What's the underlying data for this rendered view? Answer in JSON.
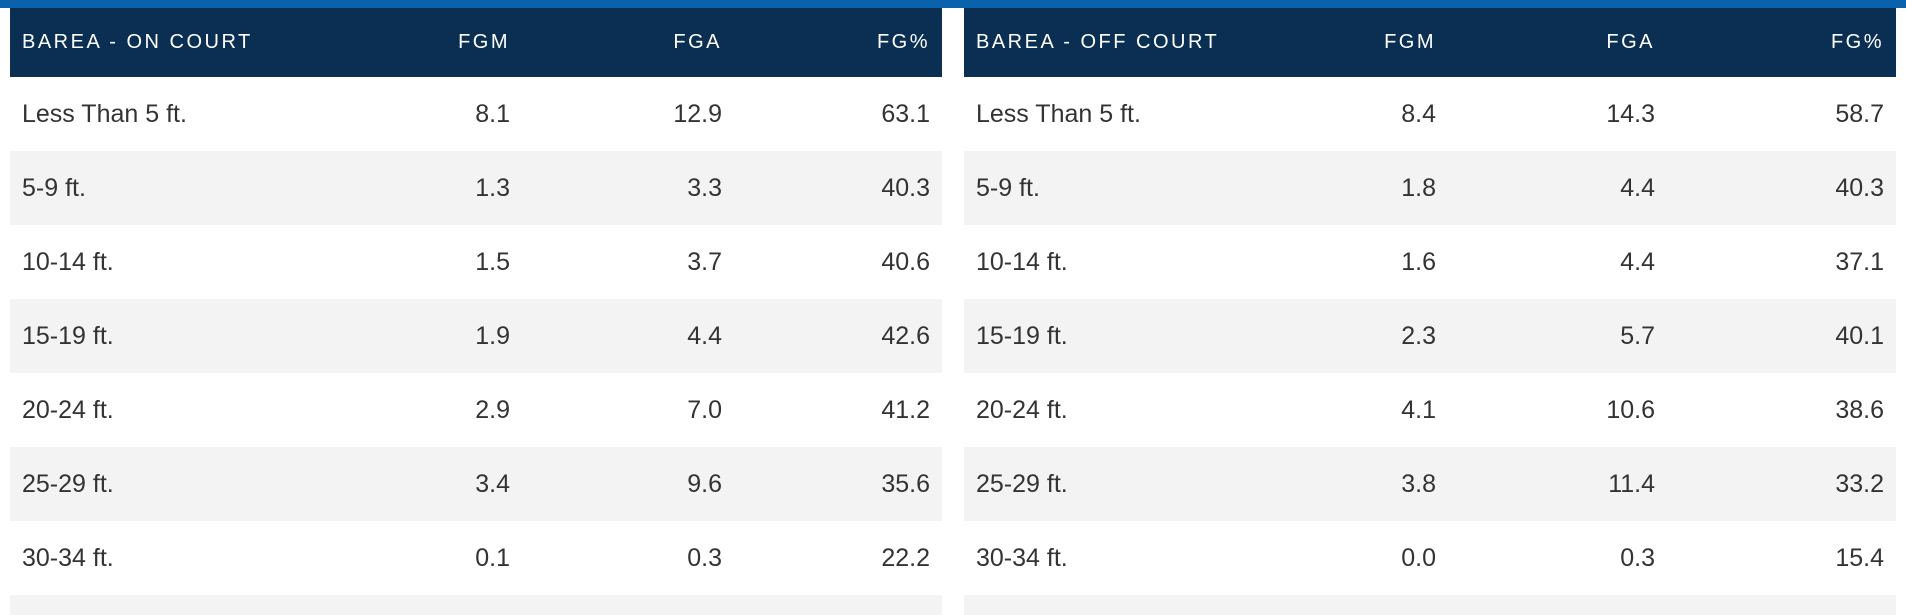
{
  "accent_colors": {
    "top_bar": "#0a62ad",
    "header_bg": "#0a2f52",
    "alt_row_bg": "#f3f3f3",
    "text": "#333333"
  },
  "on_court": {
    "columns": [
      "BAREA - ON COURT",
      "FGM",
      "FGA",
      "FG%"
    ],
    "rows": [
      [
        "Less Than 5 ft.",
        "8.1",
        "12.9",
        "63.1"
      ],
      [
        "5-9 ft.",
        "1.3",
        "3.3",
        "40.3"
      ],
      [
        "10-14 ft.",
        "1.5",
        "3.7",
        "40.6"
      ],
      [
        "15-19 ft.",
        "1.9",
        "4.4",
        "42.6"
      ],
      [
        "20-24 ft.",
        "2.9",
        "7.0",
        "41.2"
      ],
      [
        "25-29 ft.",
        "3.4",
        "9.6",
        "35.6"
      ],
      [
        "30-34 ft.",
        "0.1",
        "0.3",
        "22.2"
      ]
    ]
  },
  "off_court": {
    "columns": [
      "BAREA - OFF COURT",
      "FGM",
      "FGA",
      "FG%"
    ],
    "rows": [
      [
        "Less Than 5 ft.",
        "8.4",
        "14.3",
        "58.7"
      ],
      [
        "5-9 ft.",
        "1.8",
        "4.4",
        "40.3"
      ],
      [
        "10-14 ft.",
        "1.6",
        "4.4",
        "37.1"
      ],
      [
        "15-19 ft.",
        "2.3",
        "5.7",
        "40.1"
      ],
      [
        "20-24 ft.",
        "4.1",
        "10.6",
        "38.6"
      ],
      [
        "25-29 ft.",
        "3.8",
        "11.4",
        "33.2"
      ],
      [
        "30-34 ft.",
        "0.0",
        "0.3",
        "15.4"
      ]
    ]
  }
}
